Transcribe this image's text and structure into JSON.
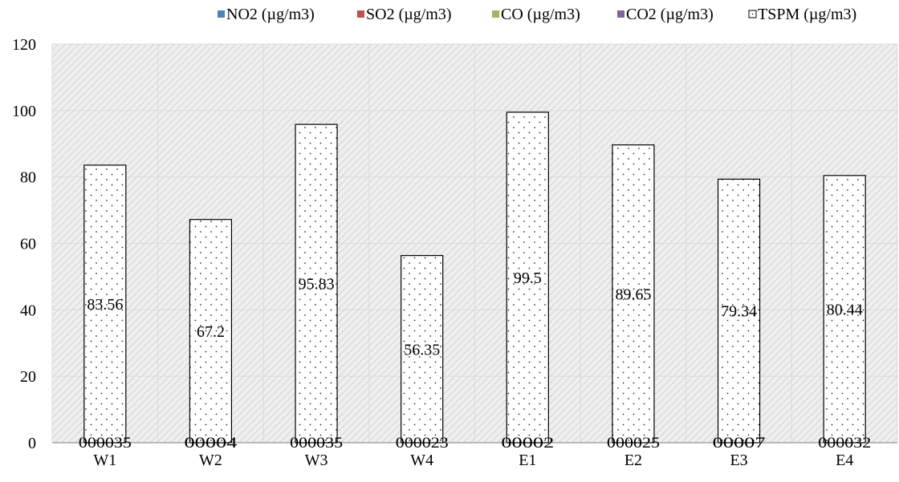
{
  "chart_data": {
    "type": "bar",
    "categories": [
      "W1",
      "W2",
      "W3",
      "W4",
      "E1",
      "E2",
      "E3",
      "E4"
    ],
    "series": [
      {
        "name": "NO2  (µg/m3)",
        "values": [
          0,
          0,
          0,
          0,
          0,
          0,
          0,
          0
        ]
      },
      {
        "name": "SO2 (µg/m3)",
        "values": [
          0,
          0,
          0,
          0,
          0,
          0,
          0,
          0
        ]
      },
      {
        "name": "CO (µg/m3)",
        "values": [
          0,
          0,
          0,
          0,
          0,
          0,
          0,
          0
        ]
      },
      {
        "name": "CO2 (µg/m3)",
        "values": [
          0,
          0,
          0,
          0,
          0,
          0,
          0,
          0
        ]
      },
      {
        "name": "TSPM (µg/m3)",
        "values": [
          83.56,
          67.2,
          95.83,
          56.35,
          99.5,
          89.65,
          79.34,
          80.44
        ]
      }
    ],
    "data_labels": [
      "83.56",
      "67.2",
      "95.83",
      "56.35",
      "99.5",
      "89.65",
      "79.34",
      "80.44"
    ],
    "base_labels": [
      "000035",
      "00004",
      "000035",
      "000023",
      "00002",
      "000025",
      "00007",
      "000032"
    ],
    "title": "",
    "xlabel": "",
    "ylabel": "",
    "ylim": [
      0,
      120
    ],
    "yticks": [
      "0",
      "20",
      "40",
      "60",
      "80",
      "100",
      "120"
    ],
    "grid": true,
    "legend_position": "top-right",
    "colors": {
      "NO2": "#4f81bd",
      "SO2": "#c0504d",
      "CO": "#9bbb59",
      "CO2": "#8064a2",
      "TSPM_fill": "#ffffff",
      "TSPM_edge": "#000000",
      "plot_bg": "#ebebeb",
      "hatch": "#d0d0d0",
      "grid": "#d9d9d9"
    }
  }
}
